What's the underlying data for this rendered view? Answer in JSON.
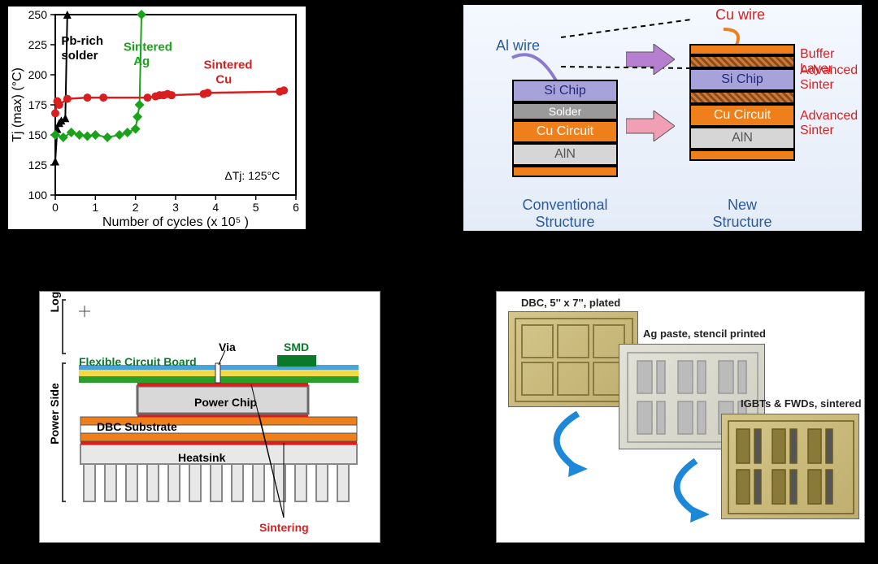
{
  "panel1": {
    "type": "line+scatter",
    "title_annotation": "ΔTj: 125°C",
    "xlabel": "Number of cycles (x 10⁵ )",
    "ylabel": "Tj (max)  (°C)",
    "xlim": [
      0,
      6
    ],
    "ylim": [
      100,
      250
    ],
    "xticks": [
      0,
      1,
      2,
      3,
      4,
      5,
      6
    ],
    "yticks": [
      100,
      125,
      150,
      175,
      200,
      225,
      250
    ],
    "bg": "#ffffff",
    "axis_color": "#000000",
    "grid": false,
    "label_fontsize": 16,
    "tick_fontsize": 14,
    "series": [
      {
        "name": "Pb-rich solder",
        "label": "Pb-rich\nsolder",
        "color": "#000000",
        "marker": "triangle",
        "marker_size": 5,
        "line_width": 2,
        "points": [
          [
            0,
            128
          ],
          [
            0.05,
            155
          ],
          [
            0.1,
            160
          ],
          [
            0.15,
            162
          ],
          [
            0.25,
            164
          ],
          [
            0.3,
            250
          ]
        ]
      },
      {
        "name": "Sintered Ag",
        "label": "Sintered\nAg",
        "color": "#1aa31a",
        "marker": "diamond",
        "marker_size": 6,
        "line_width": 2,
        "points": [
          [
            0,
            150
          ],
          [
            0.2,
            148
          ],
          [
            0.4,
            152
          ],
          [
            0.6,
            150
          ],
          [
            0.8,
            149
          ],
          [
            1.0,
            150
          ],
          [
            1.3,
            148
          ],
          [
            1.6,
            150
          ],
          [
            1.8,
            152
          ],
          [
            2.0,
            155
          ],
          [
            2.05,
            165
          ],
          [
            2.1,
            175
          ],
          [
            2.15,
            250
          ]
        ]
      },
      {
        "name": "Sintered Cu",
        "label": "Sintered\nCu",
        "color": "#d81e1e",
        "marker": "circle",
        "marker_size": 5,
        "line_width": 2.5,
        "points": [
          [
            0,
            168
          ],
          [
            0.05,
            178
          ],
          [
            0.1,
            175
          ],
          [
            0.3,
            180
          ],
          [
            0.8,
            181
          ],
          [
            1.2,
            181
          ],
          [
            2.3,
            181
          ],
          [
            2.5,
            182
          ],
          [
            2.6,
            183
          ],
          [
            2.7,
            183
          ],
          [
            2.8,
            184
          ],
          [
            2.9,
            183
          ],
          [
            3.7,
            184
          ],
          [
            3.8,
            185
          ],
          [
            5.6,
            186
          ],
          [
            5.7,
            187
          ]
        ]
      }
    ]
  },
  "panel2": {
    "type": "stack-diagram",
    "left_caption": "Conventional\nStructure",
    "right_caption": "New\nStructure",
    "al_wire": "Al wire",
    "cu_wire": "Cu wire",
    "buffer": "Buffer Layer",
    "adv1": "Advanced Sinter",
    "adv2": "Advanced Sinter",
    "left_stack": [
      {
        "cls": "si",
        "text": "Si Chip"
      },
      {
        "cls": "solder",
        "text": "Solder"
      },
      {
        "cls": "cu",
        "text": "Cu Circuit"
      },
      {
        "cls": "ain",
        "text": "AlN"
      },
      {
        "cls": "cu",
        "text": ""
      }
    ],
    "right_stack": [
      {
        "cls": "cu",
        "text": ""
      },
      {
        "cls": "sinter",
        "text": ""
      },
      {
        "cls": "si",
        "text": "Si Chip"
      },
      {
        "cls": "sinter",
        "text": ""
      },
      {
        "cls": "cu",
        "text": "Cu Circuit"
      },
      {
        "cls": "ain",
        "text": "AlN"
      },
      {
        "cls": "cu",
        "text": ""
      }
    ],
    "colors": {
      "si": "#a8a2db",
      "solder": "#9a9a9a",
      "cu": "#ef7f1a",
      "ain": "#d6d6d6",
      "al_wire": "#8a7ad0",
      "cu_wire": "#ef7f1a",
      "arrow1": "#b67fd0",
      "arrow2": "#f19fb4",
      "caption": "#2a5aa0",
      "rlabel": "#d62222"
    }
  },
  "panel3": {
    "type": "cross-section",
    "logic_side": "Logic Side",
    "power_side": "Power Side",
    "flex": "Flexible Circuit Board",
    "via": "Via",
    "smd": "SMD",
    "power_chip": "Power Chip",
    "dbc": "DBC Substrate",
    "heatsink": "Heatsink",
    "sintering": "Sintering",
    "colors": {
      "flex_top": "#4aa3d8",
      "flex_yellow": "#f2d94a",
      "flex_green": "#2aa02a",
      "smd": "#0a7a2a",
      "chip": "#d8d8d8",
      "chip_border": "#6a6a6a",
      "dbc_cu": "#ef7f1a",
      "dbc_white": "#ffffff",
      "sinter_line": "#d81e1e",
      "heatsink": "#e8e8e8",
      "heatsink_border": "#888888"
    }
  },
  "panel4": {
    "type": "process-photos",
    "labels": {
      "a": "DBC, 5'' x 7'', plated",
      "b": "Ag paste, stencil printed",
      "c": "IGBTs & FWDs, sintered"
    },
    "arrow_color": "#1e88d8"
  }
}
